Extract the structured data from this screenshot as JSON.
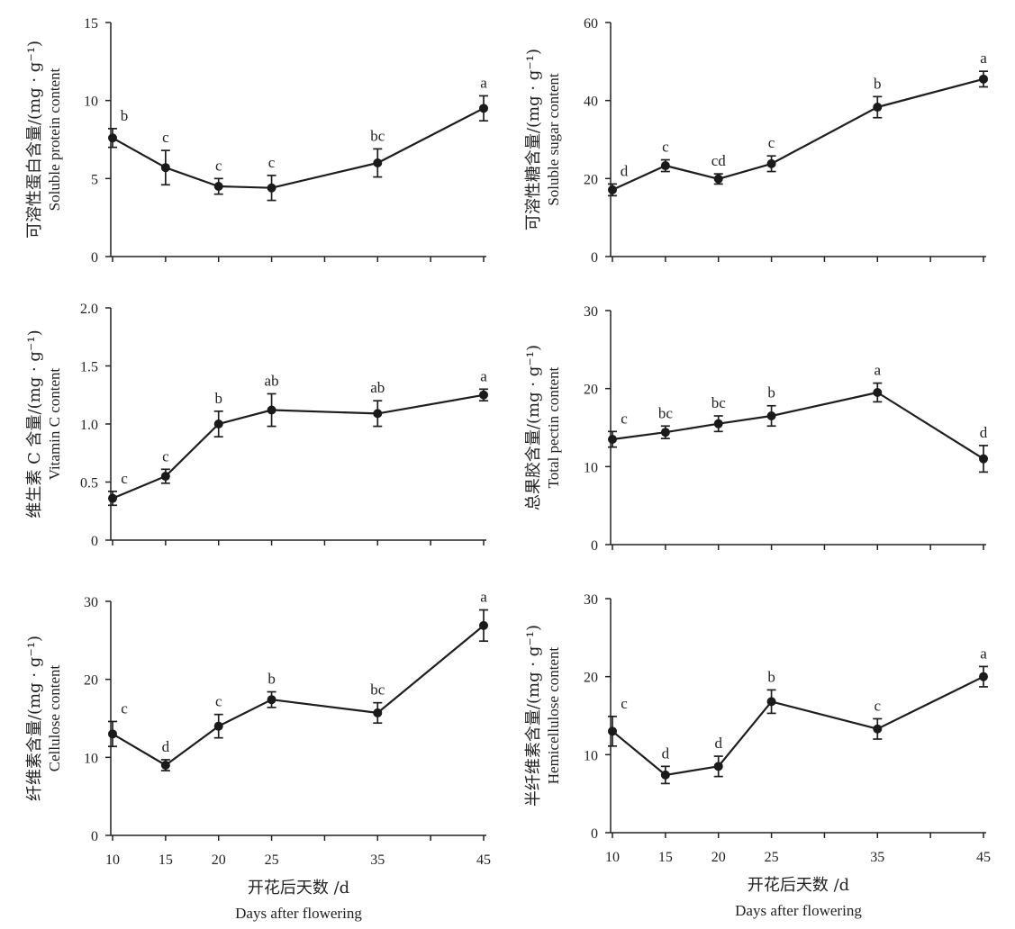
{
  "chart_data": [
    {
      "type": "line",
      "ylabel_cn": "可溶性蛋白含量/(mg · g⁻¹)",
      "ylabel_en": "Soluble protein content",
      "x": [
        10,
        15,
        20,
        25,
        35,
        45
      ],
      "xlim": [
        10,
        45
      ],
      "ylim": [
        0,
        15
      ],
      "yticks": [
        0,
        5,
        10,
        15
      ],
      "yticklabels": [
        "0",
        "5",
        "10",
        "15"
      ],
      "values": [
        7.6,
        5.7,
        4.5,
        4.4,
        6.0,
        9.5
      ],
      "error": [
        0.6,
        1.1,
        0.5,
        0.8,
        0.9,
        0.8
      ],
      "letters": [
        "b",
        "c",
        "c",
        "c",
        "bc",
        "a"
      ]
    },
    {
      "type": "line",
      "ylabel_cn": "可溶性糖含量/(mg · g⁻¹)",
      "ylabel_en": "Soluble sugar content",
      "x": [
        10,
        15,
        20,
        25,
        35,
        45
      ],
      "xlim": [
        10,
        45
      ],
      "ylim": [
        0,
        60
      ],
      "yticks": [
        0,
        20,
        40,
        60
      ],
      "yticklabels": [
        "0",
        "20",
        "40",
        "60"
      ],
      "values": [
        17.1,
        23.3,
        19.9,
        23.8,
        38.3,
        45.5
      ],
      "error": [
        1.5,
        1.5,
        1.3,
        2.0,
        2.7,
        2.0
      ],
      "letters": [
        "d",
        "c",
        "cd",
        "c",
        "b",
        "a"
      ]
    },
    {
      "type": "line",
      "ylabel_cn": "维生素 C 含量/(mg · g⁻¹)",
      "ylabel_en": "Vitamin C content",
      "x": [
        10,
        15,
        20,
        25,
        35,
        45
      ],
      "xlim": [
        10,
        45
      ],
      "ylim": [
        0,
        2.0
      ],
      "yticks": [
        0,
        0.5,
        1.0,
        1.5,
        2.0
      ],
      "yticklabels": [
        "0",
        "0.5",
        "1.0",
        "1.5",
        "2.0"
      ],
      "values": [
        0.36,
        0.55,
        1.0,
        1.12,
        1.09,
        1.25
      ],
      "error": [
        0.06,
        0.06,
        0.11,
        0.14,
        0.11,
        0.05
      ],
      "letters": [
        "c",
        "c",
        "b",
        "ab",
        "ab",
        "a"
      ]
    },
    {
      "type": "line",
      "ylabel_cn": "总果胶含量/(mg · g⁻¹)",
      "ylabel_en": "Total pectin content",
      "x": [
        10,
        15,
        20,
        25,
        35,
        45
      ],
      "xlim": [
        10,
        45
      ],
      "ylim": [
        0,
        30
      ],
      "yticks": [
        0,
        10,
        20,
        30
      ],
      "yticklabels": [
        "0",
        "10",
        "20",
        "30"
      ],
      "values": [
        13.5,
        14.4,
        15.5,
        16.5,
        19.5,
        11.0
      ],
      "error": [
        1.0,
        0.8,
        1.0,
        1.3,
        1.2,
        1.7
      ],
      "letters": [
        "c",
        "bc",
        "bc",
        "b",
        "a",
        "d"
      ]
    },
    {
      "type": "line",
      "ylabel_cn": "纤维素含量/(mg · g⁻¹)",
      "ylabel_en": "Cellulose content",
      "xlabel_cn": "开花后天数 /d",
      "xlabel_en": "Days after flowering",
      "x": [
        10,
        15,
        20,
        25,
        35,
        45
      ],
      "xticklabels": [
        "10",
        "15",
        "20",
        "25",
        "35",
        "45"
      ],
      "xlim": [
        10,
        45
      ],
      "ylim": [
        0,
        30
      ],
      "yticks": [
        0,
        10,
        20,
        30
      ],
      "yticklabels": [
        "0",
        "10",
        "20",
        "30"
      ],
      "values": [
        13.0,
        9.0,
        14.0,
        17.4,
        15.7,
        26.9
      ],
      "error": [
        1.6,
        0.7,
        1.5,
        1.0,
        1.3,
        2.0
      ],
      "letters": [
        "c",
        "d",
        "c",
        "b",
        "bc",
        "a"
      ]
    },
    {
      "type": "line",
      "ylabel_cn": "半纤维素含量/(mg · g⁻¹)",
      "ylabel_en": "Hemicellulose content",
      "xlabel_cn": "开花后天数 /d",
      "xlabel_en": "Days after flowering",
      "x": [
        10,
        15,
        20,
        25,
        35,
        45
      ],
      "xticklabels": [
        "10",
        "15",
        "20",
        "25",
        "35",
        "45"
      ],
      "xlim": [
        10,
        45
      ],
      "ylim": [
        0,
        30
      ],
      "yticks": [
        0,
        10,
        20,
        30
      ],
      "yticklabels": [
        "0",
        "10",
        "20",
        "30"
      ],
      "values": [
        13.0,
        7.4,
        8.5,
        16.8,
        13.3,
        20.0
      ],
      "error": [
        1.9,
        1.1,
        1.3,
        1.5,
        1.3,
        1.3
      ],
      "letters": [
        "c",
        "d",
        "d",
        "b",
        "c",
        "a"
      ]
    }
  ]
}
